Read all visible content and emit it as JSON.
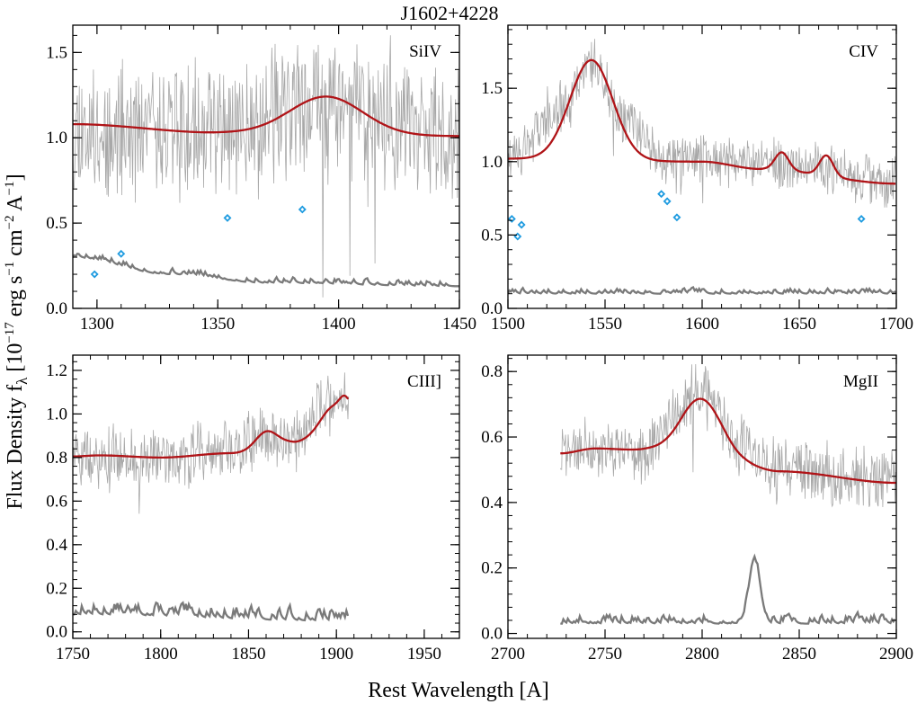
{
  "figure": {
    "title": "J1602+4228",
    "xlabel": "Rest Wavelength [A]",
    "ylabel_main": "Flux Density f",
    "ylabel_sub": "λ",
    "ylabel_unit_open": " [10",
    "ylabel_exp1": "−17",
    "ylabel_unit_mid": " erg s",
    "ylabel_exp2": "−1",
    "ylabel_unit_mid2": " cm",
    "ylabel_exp3": "−2",
    "ylabel_unit_mid3": " A",
    "ylabel_exp4": "−1",
    "ylabel_unit_close": "]"
  },
  "colors": {
    "spectrum": "#a8a8a8",
    "model": "#b01418",
    "error": "#7a7a7a",
    "markers": "#1e9be0"
  },
  "chart_data": [
    {
      "type": "line",
      "panel_label": "SiIV",
      "xlim": [
        1290,
        1450
      ],
      "ylim": [
        0,
        1.66
      ],
      "xticks": [
        1300,
        1350,
        1400,
        1450
      ],
      "xtick_labels": [
        "1300",
        "1350",
        "1400",
        "1450"
      ],
      "yticks": [
        0,
        0.5,
        1.0,
        1.5
      ],
      "ytick_labels": [
        "0.0",
        "0.5",
        "1.0",
        "1.5"
      ],
      "series": [
        {
          "role": "spectrum",
          "x_range": [
            1290,
            1450
          ],
          "mean": [
            [
              1290,
              1.05
            ],
            [
              1350,
              1.03
            ],
            [
              1395,
              1.2
            ],
            [
              1450,
              1.02
            ]
          ],
          "noise": 0.35,
          "seed": 11
        },
        {
          "role": "model",
          "continuum": [
            [
              1290,
              1.08
            ],
            [
              1350,
              1.03
            ],
            [
              1450,
              1.01
            ]
          ],
          "gaussians": [
            [
              1395,
              15,
              0.22
            ]
          ]
        },
        {
          "role": "error",
          "x_range": [
            1290,
            1450
          ],
          "level": [
            [
              1290,
              0.3
            ],
            [
              1330,
              0.2
            ],
            [
              1370,
              0.15
            ],
            [
              1450,
              0.13
            ]
          ],
          "noise": 0.05,
          "seed": 5
        }
      ],
      "markers": [
        [
          1299,
          0.2
        ],
        [
          1310,
          0.32
        ],
        [
          1354,
          0.53
        ],
        [
          1385,
          0.58
        ]
      ]
    },
    {
      "type": "line",
      "panel_label": "CIV",
      "xlim": [
        1500,
        1700
      ],
      "ylim": [
        0,
        1.93
      ],
      "xticks": [
        1500,
        1550,
        1600,
        1650,
        1700
      ],
      "xtick_labels": [
        "1500",
        "1550",
        "1600",
        "1650",
        "1700"
      ],
      "yticks": [
        0,
        0.5,
        1.0,
        1.5
      ],
      "ytick_labels": [
        "0.0",
        "0.5",
        "1.0",
        "1.5"
      ],
      "series": [
        {
          "role": "spectrum",
          "x_range": [
            1500,
            1700
          ],
          "mean": [
            [
              1500,
              1.05
            ],
            [
              1530,
              1.4
            ],
            [
              1543,
              1.68
            ],
            [
              1560,
              1.3
            ],
            [
              1580,
              1.02
            ],
            [
              1640,
              1.0
            ],
            [
              1700,
              0.85
            ]
          ],
          "noise": 0.15,
          "seed": 23
        },
        {
          "role": "model",
          "continuum": [
            [
              1500,
              1.02
            ],
            [
              1600,
              1.0
            ],
            [
              1630,
              0.95
            ],
            [
              1700,
              0.85
            ]
          ],
          "gaussians": [
            [
              1543,
              11,
              0.68
            ],
            [
              1641,
              3.5,
              0.12
            ],
            [
              1664,
              3.5,
              0.14
            ]
          ]
        },
        {
          "role": "error",
          "x_range": [
            1500,
            1700
          ],
          "level": [
            [
              1500,
              0.1
            ],
            [
              1700,
              0.1
            ]
          ],
          "noise": 0.05,
          "seed": 7
        }
      ],
      "markers": [
        [
          1502,
          0.61
        ],
        [
          1505,
          0.49
        ],
        [
          1507,
          0.57
        ],
        [
          1579,
          0.78
        ],
        [
          1582,
          0.73
        ],
        [
          1587,
          0.62
        ],
        [
          1682,
          0.61
        ]
      ]
    },
    {
      "type": "line",
      "panel_label": "CIII]",
      "xlim": [
        1750,
        1970
      ],
      "ylim": [
        -0.03,
        1.27
      ],
      "xticks": [
        1750,
        1800,
        1850,
        1900,
        1950
      ],
      "xtick_labels": [
        "1750",
        "1800",
        "1850",
        "1900",
        "1950"
      ],
      "yticks": [
        0,
        0.2,
        0.4,
        0.6,
        0.8,
        1.0,
        1.2
      ],
      "ytick_labels": [
        "0.0",
        "0.2",
        "0.4",
        "0.6",
        "0.8",
        "1.0",
        "1.2"
      ],
      "series": [
        {
          "role": "spectrum",
          "x_range": [
            1750,
            1907
          ],
          "mean": [
            [
              1750,
              0.8
            ],
            [
              1800,
              0.8
            ],
            [
              1840,
              0.84
            ],
            [
              1860,
              0.9
            ],
            [
              1875,
              0.88
            ],
            [
              1895,
              1.04
            ],
            [
              1907,
              1.1
            ]
          ],
          "noise": 0.12,
          "seed": 31
        },
        {
          "role": "model",
          "x_range": [
            1750,
            1907
          ],
          "continuum": [
            [
              1750,
              0.805
            ],
            [
              1765,
              0.81
            ],
            [
              1800,
              0.8
            ],
            [
              1840,
              0.82
            ],
            [
              1875,
              0.87
            ],
            [
              1907,
              1.0
            ]
          ],
          "gaussians": [
            [
              1860,
              6,
              0.07
            ],
            [
              1897,
              6,
              0.06
            ],
            [
              1905,
              3,
              0.06
            ]
          ]
        },
        {
          "role": "error",
          "x_range": [
            1750,
            1907
          ],
          "level": [
            [
              1750,
              0.08
            ],
            [
              1907,
              0.05
            ]
          ],
          "noise": 0.08,
          "seed": 13
        }
      ],
      "markers": []
    },
    {
      "type": "line",
      "panel_label": "MgII",
      "xlim": [
        2700,
        2900
      ],
      "ylim": [
        -0.015,
        0.85
      ],
      "xticks": [
        2700,
        2750,
        2800,
        2850,
        2900
      ],
      "xtick_labels": [
        "2700",
        "2750",
        "2800",
        "2850",
        "2900"
      ],
      "yticks": [
        0,
        0.2,
        0.4,
        0.6,
        0.8
      ],
      "ytick_labels": [
        "0.0",
        "0.2",
        "0.4",
        "0.6",
        "0.8"
      ],
      "series": [
        {
          "role": "spectrum",
          "x_range": [
            2727,
            2900
          ],
          "mean": [
            [
              2727,
              0.56
            ],
            [
              2770,
              0.56
            ],
            [
              2800,
              0.74
            ],
            [
              2820,
              0.58
            ],
            [
              2840,
              0.5
            ],
            [
              2900,
              0.46
            ]
          ],
          "noise": 0.08,
          "seed": 41
        },
        {
          "role": "model",
          "x_range": [
            2727,
            2900
          ],
          "continuum": [
            [
              2727,
              0.55
            ],
            [
              2745,
              0.565
            ],
            [
              2770,
              0.56
            ],
            [
              2790,
              0.545
            ],
            [
              2820,
              0.51
            ],
            [
              2840,
              0.495
            ],
            [
              2900,
              0.46
            ]
          ],
          "gaussians": [
            [
              2800,
              11,
              0.18
            ]
          ]
        },
        {
          "role": "error",
          "x_range": [
            2727,
            2900
          ],
          "level": [
            [
              2727,
              0.03
            ],
            [
              2900,
              0.03
            ]
          ],
          "noise": 0.04,
          "seed": 19
        }
      ],
      "error_spikes": [
        [
          2827,
          0.18,
          3
        ]
      ],
      "markers": []
    }
  ]
}
